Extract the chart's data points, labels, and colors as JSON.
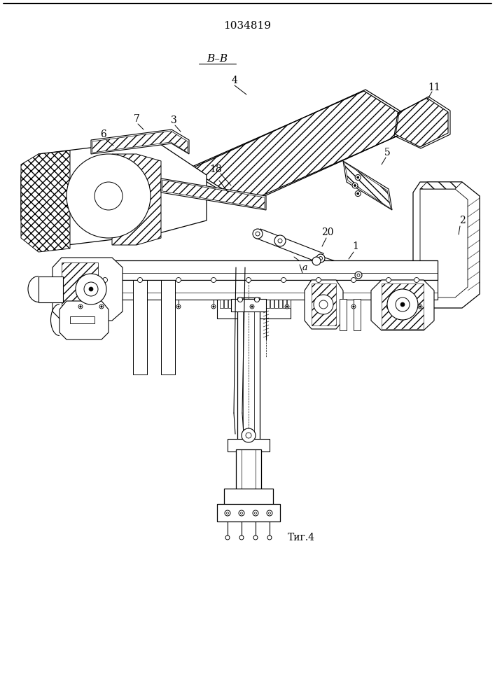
{
  "title": "1034819",
  "section_label": "В–В",
  "fig_label": "Τиг.4",
  "bg_color": "#ffffff",
  "line_color": "#000000",
  "title_fontsize": 11,
  "label_fontsize": 10
}
